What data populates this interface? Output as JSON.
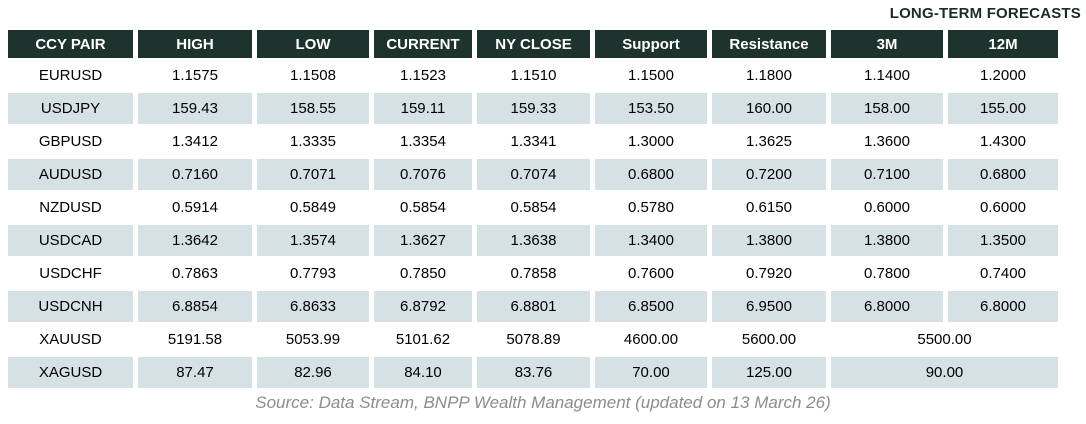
{
  "header_label": "LONG-TERM FORECASTS",
  "chart_data": {
    "type": "table",
    "title": "LONG-TERM FORECASTS",
    "columns": [
      "CCY PAIR",
      "HIGH",
      "LOW",
      "CURRENT",
      "NY CLOSE",
      "Support",
      "Resistance",
      "3M",
      "12M"
    ],
    "rows": [
      {
        "pair": "EURUSD",
        "values": [
          "1.1575",
          "1.1508",
          "1.1523",
          "1.1510",
          "1.1500",
          "1.1800",
          "1.1400",
          "1.2000"
        ]
      },
      {
        "pair": "USDJPY",
        "values": [
          "159.43",
          "158.55",
          "159.11",
          "159.33",
          "153.50",
          "160.00",
          "158.00",
          "155.00"
        ]
      },
      {
        "pair": "GBPUSD",
        "values": [
          "1.3412",
          "1.3335",
          "1.3354",
          "1.3341",
          "1.3000",
          "1.3625",
          "1.3600",
          "1.4300"
        ]
      },
      {
        "pair": "AUDUSD",
        "values": [
          "0.7160",
          "0.7071",
          "0.7076",
          "0.7074",
          "0.6800",
          "0.7200",
          "0.7100",
          "0.6800"
        ]
      },
      {
        "pair": "NZDUSD",
        "values": [
          "0.5914",
          "0.5849",
          "0.5854",
          "0.5854",
          "0.5780",
          "0.6150",
          "0.6000",
          "0.6000"
        ]
      },
      {
        "pair": "USDCAD",
        "values": [
          "1.3642",
          "1.3574",
          "1.3627",
          "1.3638",
          "1.3400",
          "1.3800",
          "1.3800",
          "1.3500"
        ]
      },
      {
        "pair": "USDCHF",
        "values": [
          "0.7863",
          "0.7793",
          "0.7850",
          "0.7858",
          "0.7600",
          "0.7920",
          "0.7800",
          "0.7400"
        ]
      },
      {
        "pair": "USDCNH",
        "values": [
          "6.8854",
          "6.8633",
          "6.8792",
          "6.8801",
          "6.8500",
          "6.9500",
          "6.8000",
          "6.8000"
        ]
      },
      {
        "pair": "XAUUSD",
        "values": [
          "5191.58",
          "5053.99",
          "5101.62",
          "5078.89",
          "4600.00",
          "5600.00"
        ],
        "merged_3m_12m": "5500.00"
      },
      {
        "pair": "XAGUSD",
        "values": [
          "87.47",
          "82.96",
          "84.10",
          "83.76",
          "70.00",
          "125.00"
        ],
        "merged_3m_12m": "90.00"
      }
    ]
  },
  "source_note": "Source: Data Stream, BNPP Wealth Management (updated on 13 March 26)",
  "colors": {
    "header_bg": "#1e332e",
    "header_text": "#ffffff",
    "row_bg": "#ffffff",
    "row_alt_bg": "#d6e1e5",
    "body_text": "#000000",
    "label_text": "#1b2b26",
    "source_text": "#8c8c8c"
  }
}
